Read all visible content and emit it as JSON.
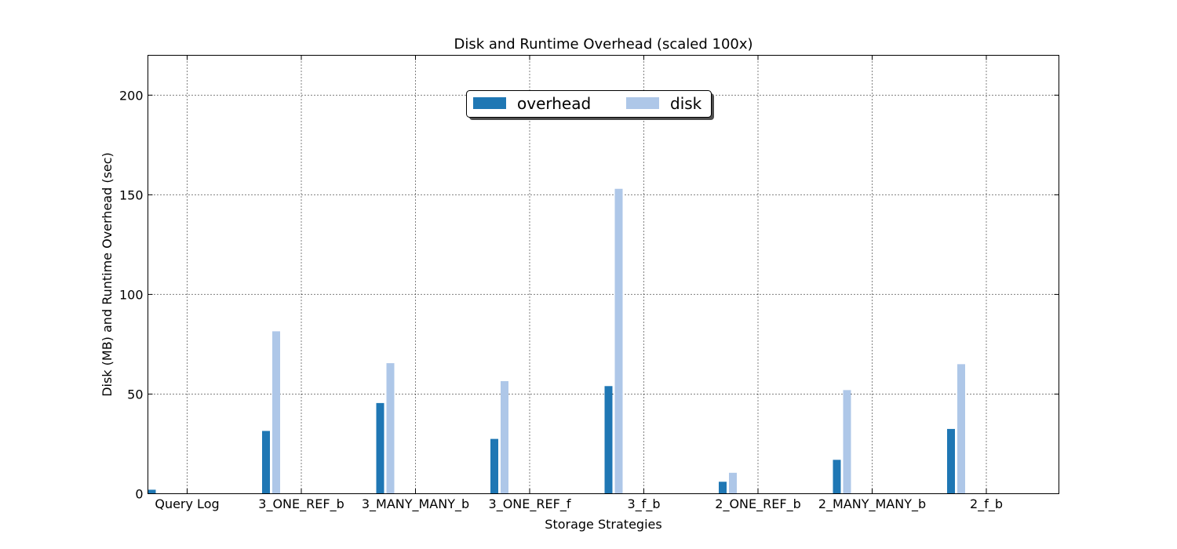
{
  "chart_data": {
    "type": "bar",
    "title": "Disk and Runtime Overhead (scaled 100x)",
    "xlabel": "Storage Strategies",
    "ylabel": "Disk (MB) and Runtime Overhead (sec)",
    "ylim": [
      0,
      220
    ],
    "yticks": [
      0,
      50,
      100,
      150,
      200
    ],
    "grid": true,
    "legend_position": "upper center",
    "categories": [
      "Query Log",
      "3_ONE_REF_b",
      "3_MANY_MANY_b",
      "3_ONE_REF_f",
      "3_f_b",
      "2_ONE_REF_b",
      "2_MANY_MANY_b",
      "2_f_b"
    ],
    "series": [
      {
        "name": "overhead",
        "color": "#1f77b4",
        "values": [
          2,
          31.5,
          45.5,
          27.5,
          54,
          6,
          17,
          32.5
        ]
      },
      {
        "name": "disk",
        "color": "#aec7e8",
        "values": [
          0,
          81.5,
          65.5,
          56.5,
          153,
          10.5,
          52,
          65
        ]
      }
    ]
  }
}
